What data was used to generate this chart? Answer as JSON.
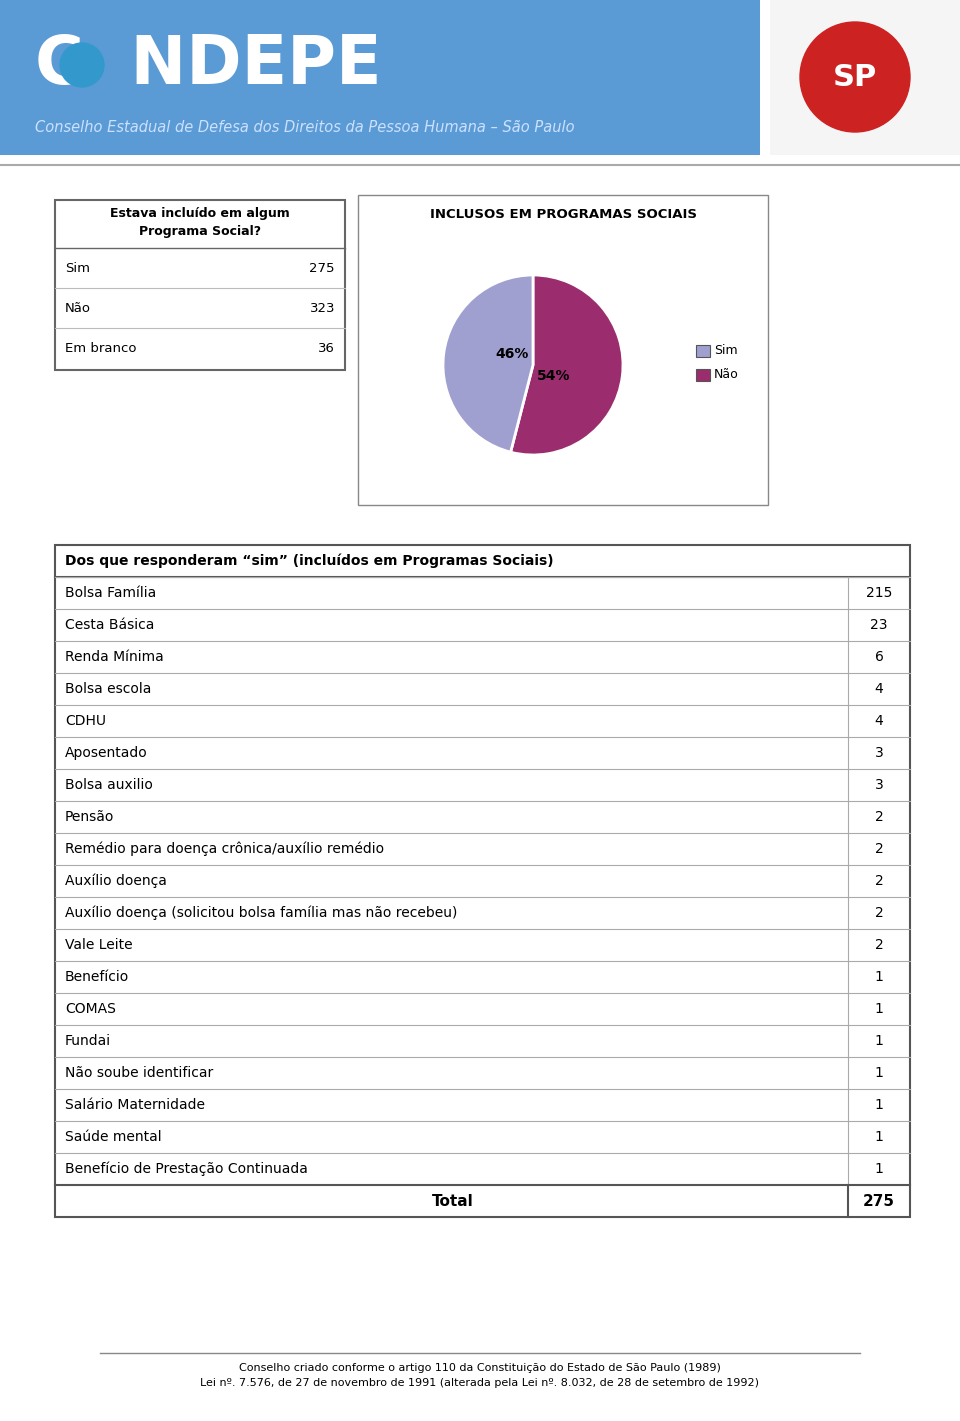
{
  "bg_color": "#ffffff",
  "header_bg": "#5b9bd5",
  "header_text": "Conselho Estadual de Defesa dos Direitos da Pessoa Humana – São Paulo",
  "pie_title": "INCLUSOS EM PROGRAMAS SOCIAIS",
  "pie_slices": [
    54,
    46
  ],
  "pie_colors": [
    "#9b2d6e",
    "#a0a0d0"
  ],
  "pie_labels": [
    "54%",
    "46%"
  ],
  "pie_legend": [
    "Sim",
    "Não"
  ],
  "pie_legend_colors": [
    "#a0a0d0",
    "#9b2d6e"
  ],
  "left_box_title": "Estava incluído em algum\nPrograma Social?",
  "left_box_rows": [
    [
      "Sim",
      "275"
    ],
    [
      "Não",
      "323"
    ],
    [
      "Em branco",
      "36"
    ]
  ],
  "table_header": "Dos que responderam “sim” (incluídos em Programas Sociais)",
  "table_rows": [
    [
      "Bolsa Família",
      "215"
    ],
    [
      "Cesta Básica",
      "23"
    ],
    [
      "Renda Mínima",
      "6"
    ],
    [
      "Bolsa escola",
      "4"
    ],
    [
      "CDHU",
      "4"
    ],
    [
      "Aposentado",
      "3"
    ],
    [
      "Bolsa auxilio",
      "3"
    ],
    [
      "Pensão",
      "2"
    ],
    [
      "Remédio para doença crônica/auxílio remédio",
      "2"
    ],
    [
      "Auxílio doença",
      "2"
    ],
    [
      "Auxílio doença (solicitou bolsa família mas não recebeu)",
      "2"
    ],
    [
      "Vale Leite",
      "2"
    ],
    [
      "Benefício",
      "1"
    ],
    [
      "COMAS",
      "1"
    ],
    [
      "Fundai",
      "1"
    ],
    [
      "Não soube identificar",
      "1"
    ],
    [
      "Salário Maternidade",
      "1"
    ],
    [
      "Saúde mental",
      "1"
    ],
    [
      "Benefício de Prestação Continuada",
      "1"
    ]
  ],
  "table_total": [
    "Total",
    "275"
  ],
  "footer_line1": "Conselho criado conforme o artigo 110 da Constituição do Estado de São Paulo (1989)",
  "footer_line2": "Lei nº. 7.576, de 27 de novembro de 1991 (alterada pela Lei nº. 8.032, de 28 de setembro de 1992)"
}
